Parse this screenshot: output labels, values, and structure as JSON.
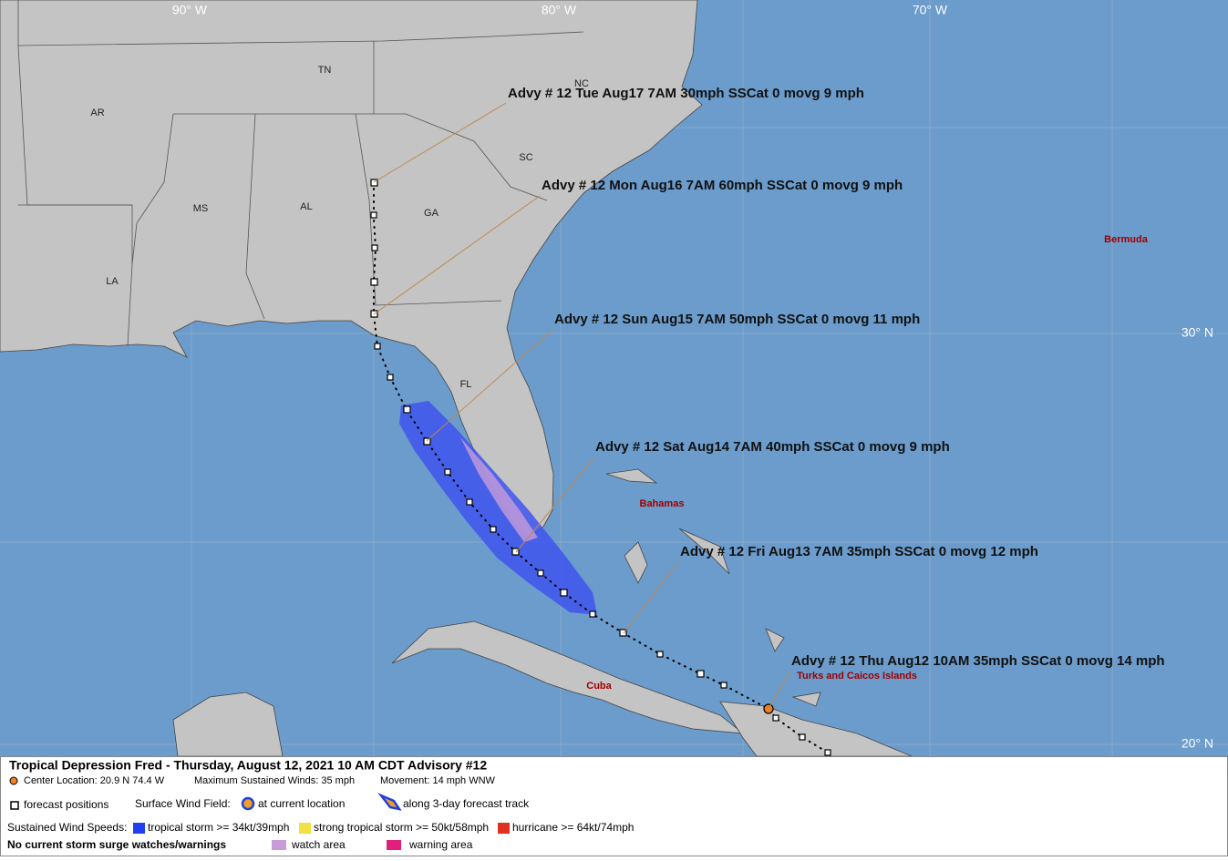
{
  "map": {
    "longitude_labels": [
      "90° W",
      "80° W",
      "70° W"
    ],
    "latitude_labels": [
      "30° N",
      "20° N"
    ],
    "state_labels": [
      "AR",
      "TN",
      "NC",
      "SC",
      "MS",
      "AL",
      "GA",
      "LA",
      "FL"
    ],
    "place_labels": [
      "Bermuda",
      "Bahamas",
      "Cuba",
      "Turks and Caicos Islands"
    ],
    "advisories": [
      "Advy # 12 Tue Aug17 7AM  30mph SSCat 0 movg 9 mph",
      "Advy # 12 Mon Aug16 7AM  60mph SSCat 0 movg 9 mph",
      "Advy # 12 Sun Aug15 7AM  50mph SSCat 0 movg 11 mph",
      "Advy # 12 Sat Aug14 7AM  40mph SSCat 0 movg 9 mph",
      "Advy # 12 Fri Aug13 7AM  35mph SSCat 0 movg 12 mph",
      "Advy # 12 Thu Aug12 10AM  35mph SSCat 0 movg 14 mph"
    ]
  },
  "legend": {
    "title": "Tropical Depression Fred  -  Thursday, August 12, 2021  10 AM CDT   Advisory #12",
    "center_location": "Center Location: 20.9 N  74.4 W",
    "max_winds": "Maximum Sustained Winds: 35 mph",
    "movement": "Movement: 14 mph WNW",
    "forecast_positions": "forecast positions",
    "surface_wind_field": "Surface Wind Field:",
    "at_current_location": "at current location",
    "along_track": "along 3-day forecast track",
    "sustained_wind_speeds": "Sustained Wind Speeds:",
    "tropical_storm": "tropical storm >= 34kt/39mph",
    "strong_tropical_storm": "strong tropical storm >= 50kt/58mph",
    "hurricane": "hurricane >= 64kt/74mph",
    "storm_surge": "No current storm surge watches/warnings",
    "watch_area": "watch area",
    "warning_area": "warning area"
  }
}
